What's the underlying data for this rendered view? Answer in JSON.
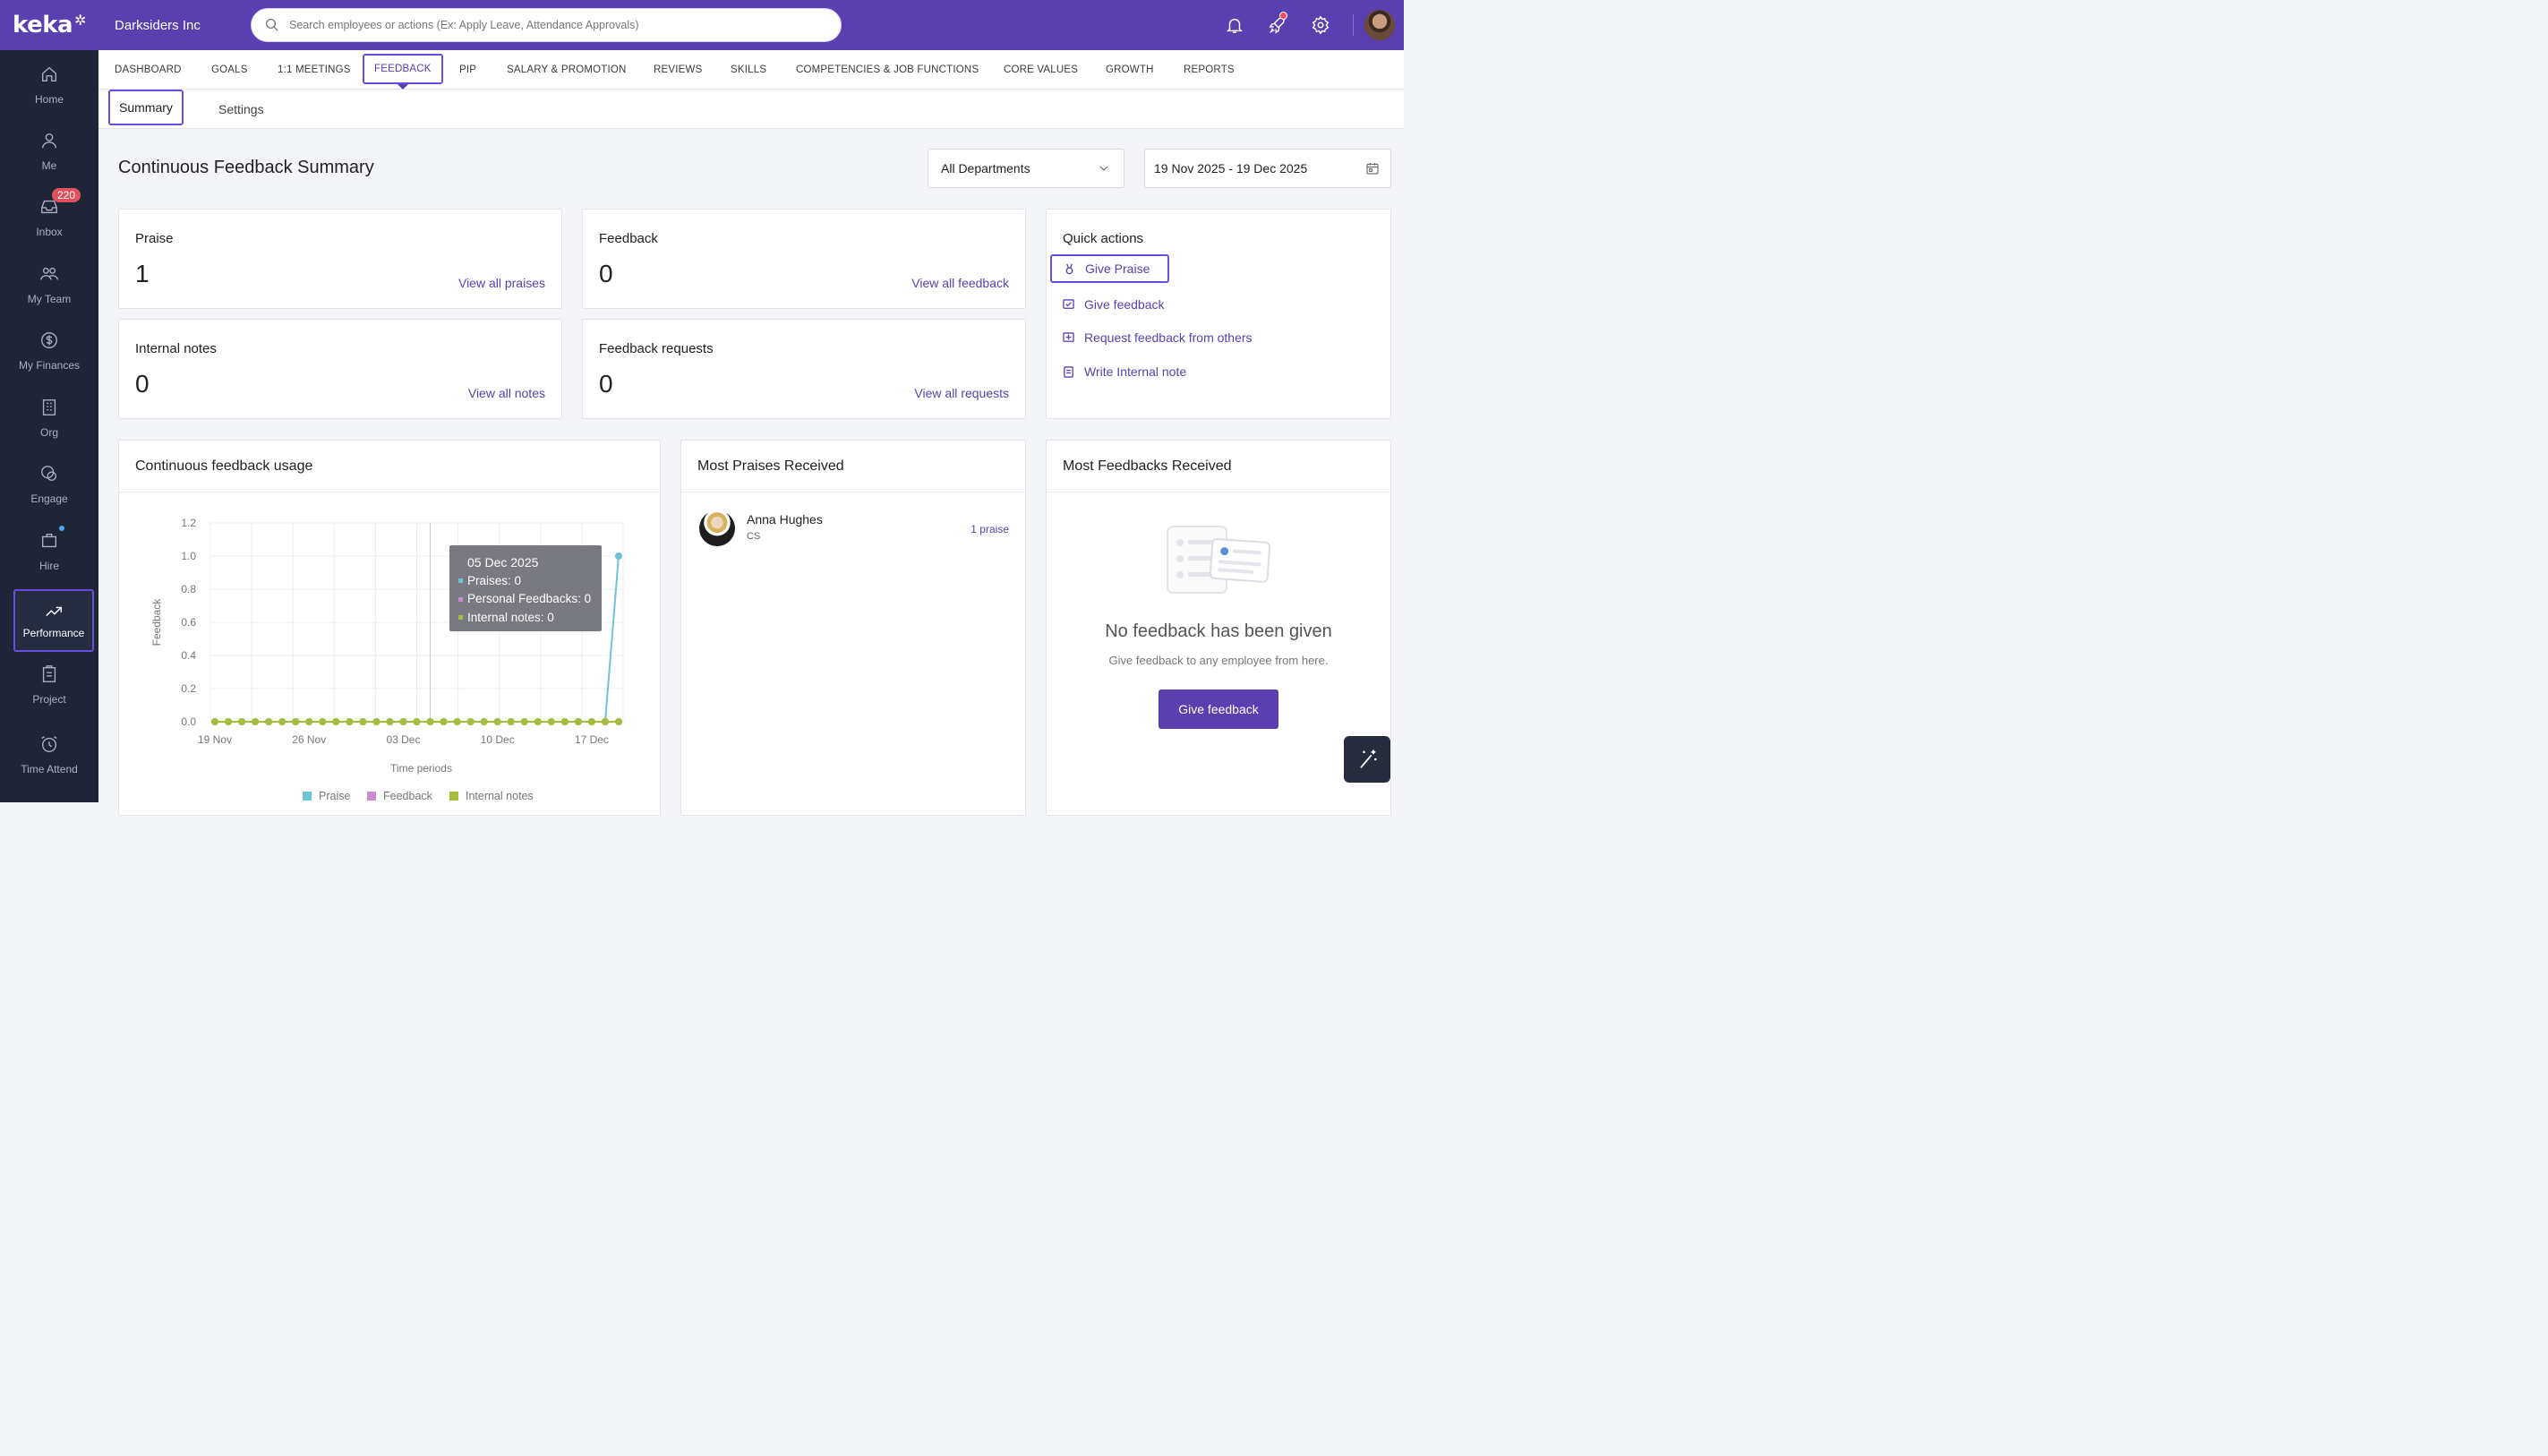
{
  "brand": {
    "logo": "keka"
  },
  "sidebar": {
    "items": [
      {
        "label": "Home",
        "icon": "home-icon"
      },
      {
        "label": "Me",
        "icon": "user-icon"
      },
      {
        "label": "Inbox",
        "icon": "inbox-icon",
        "badge": "220"
      },
      {
        "label": "My Team",
        "icon": "team-icon"
      },
      {
        "label": "My Finances",
        "icon": "dollar-icon"
      },
      {
        "label": "Org",
        "icon": "org-icon"
      },
      {
        "label": "Engage",
        "icon": "engage-icon"
      },
      {
        "label": "Hire",
        "icon": "hire-icon"
      },
      {
        "label": "Performance",
        "icon": "trend-icon"
      },
      {
        "label": "Project",
        "icon": "clipboard-icon"
      },
      {
        "label": "Time Attend",
        "icon": "alarm-icon"
      }
    ]
  },
  "header": {
    "org_name": "Darksiders Inc",
    "search_placeholder": "Search employees or actions (Ex: Apply Leave, Attendance Approvals)"
  },
  "module_tabs": [
    "DASHBOARD",
    "GOALS",
    "1:1 MEETINGS",
    "FEEDBACK",
    "PIP",
    "SALARY & PROMOTION",
    "REVIEWS",
    "SKILLS",
    "COMPETENCIES & JOB FUNCTIONS",
    "CORE VALUES",
    "GROWTH",
    "REPORTS"
  ],
  "sub_tabs": [
    "Summary",
    "Settings"
  ],
  "page": {
    "title": "Continuous Feedback Summary",
    "department_filter": "All Departments",
    "date_range": "19 Nov 2025 - 19 Dec 2025"
  },
  "stats": {
    "praise": {
      "title": "Praise",
      "value": "1",
      "link": "View all praises"
    },
    "feedback": {
      "title": "Feedback",
      "value": "0",
      "link": "View all feedback"
    },
    "notes": {
      "title": "Internal notes",
      "value": "0",
      "link": "View all notes"
    },
    "requests": {
      "title": "Feedback requests",
      "value": "0",
      "link": "View all requests"
    }
  },
  "quick_actions": {
    "title": "Quick actions",
    "items": [
      "Give Praise",
      "Give feedback",
      "Request feedback from others",
      "Write Internal note"
    ]
  },
  "usage": {
    "title": "Continuous feedback usage",
    "tooltip": {
      "date": "05 Dec 2025",
      "praises": "Praises: 0",
      "personal": "Personal Feedbacks: 0",
      "notes": "Internal notes: 0"
    }
  },
  "chart_data": {
    "type": "line",
    "xlabel": "Time periods",
    "ylabel": "Feedback",
    "ylim": [
      0,
      1.2
    ],
    "yticks": [
      "0.0",
      "0.2",
      "0.4",
      "0.6",
      "0.8",
      "1.0",
      "1.2"
    ],
    "xticks": [
      "19 Nov",
      "26 Nov",
      "03 Dec",
      "10 Dec",
      "17 Dec"
    ],
    "series": [
      {
        "name": "Praise",
        "color": "#6fc3d6",
        "values": [
          0,
          0,
          0,
          0,
          0,
          0,
          0,
          0,
          0,
          0,
          0,
          0,
          0,
          0,
          0,
          0,
          0,
          0,
          0,
          0,
          0,
          0,
          0,
          0,
          0,
          0,
          0,
          0,
          0,
          0,
          1
        ]
      },
      {
        "name": "Feedback",
        "color": "#c98ad0",
        "values": [
          0,
          0,
          0,
          0,
          0,
          0,
          0,
          0,
          0,
          0,
          0,
          0,
          0,
          0,
          0,
          0,
          0,
          0,
          0,
          0,
          0,
          0,
          0,
          0,
          0,
          0,
          0,
          0,
          0,
          0,
          0
        ]
      },
      {
        "name": "Internal notes",
        "color": "#a5bd3f",
        "values": [
          0,
          0,
          0,
          0,
          0,
          0,
          0,
          0,
          0,
          0,
          0,
          0,
          0,
          0,
          0,
          0,
          0,
          0,
          0,
          0,
          0,
          0,
          0,
          0,
          0,
          0,
          0,
          0,
          0,
          0,
          0
        ]
      }
    ],
    "legend": "bottom"
  },
  "most_praises": {
    "title": "Most Praises Received",
    "employees": [
      {
        "name": "Anna Hughes",
        "dept": "CS",
        "count": "1 praise"
      }
    ]
  },
  "most_feedbacks": {
    "title": "Most Feedbacks Received",
    "empty_title": "No feedback has been given",
    "empty_sub": "Give feedback to any employee from here.",
    "button": "Give feedback"
  }
}
